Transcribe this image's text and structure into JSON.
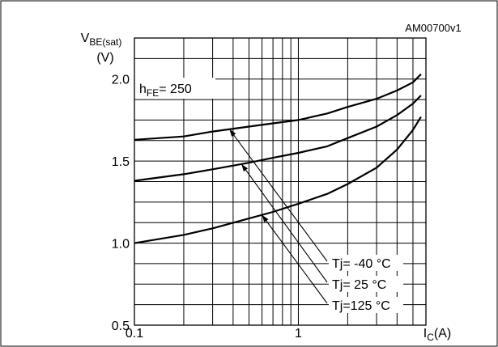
{
  "figure_id": "AM00700v1",
  "chart_data": {
    "type": "line",
    "x_scale": "log",
    "xlim": [
      0.1,
      6
    ],
    "ylim": [
      0.5,
      2.25
    ],
    "ylabel_main": "V",
    "ylabel_sub": "BE(sat)",
    "ylabel_unit": "(V)",
    "xlabel_main": "I",
    "xlabel_sub": "C",
    "xlabel_unit": "(A)",
    "x_tick_labels": [
      {
        "value": 0.1,
        "label": "0.1"
      },
      {
        "value": 1,
        "label": "1"
      }
    ],
    "y_tick_labels": [
      {
        "value": 0.5,
        "label": "0.5"
      },
      {
        "value": 1.0,
        "label": "1.0"
      },
      {
        "value": 1.5,
        "label": "1.5"
      },
      {
        "value": 2.0,
        "label": "2.0"
      }
    ],
    "condition": {
      "main": "h",
      "sub": "FE",
      "rest": "= 250"
    },
    "grid": true,
    "series": [
      {
        "name": "Tj= -40 °C",
        "x": [
          0.1,
          0.2,
          0.3,
          0.5,
          0.7,
          1.0,
          1.5,
          2.0,
          3.0,
          4.0,
          5.0,
          5.6
        ],
        "y": [
          1.63,
          1.65,
          1.68,
          1.71,
          1.73,
          1.75,
          1.79,
          1.83,
          1.88,
          1.93,
          1.98,
          2.03
        ],
        "arrow_at_x": 0.38
      },
      {
        "name": "Tj= 25 °C",
        "x": [
          0.1,
          0.2,
          0.3,
          0.5,
          0.7,
          1.0,
          1.5,
          2.0,
          3.0,
          4.0,
          5.0,
          5.6
        ],
        "y": [
          1.38,
          1.42,
          1.45,
          1.49,
          1.52,
          1.55,
          1.59,
          1.64,
          1.71,
          1.78,
          1.85,
          1.9
        ],
        "arrow_at_x": 0.45
      },
      {
        "name": "Tj=125 °C",
        "x": [
          0.1,
          0.2,
          0.3,
          0.5,
          0.7,
          1.0,
          1.5,
          2.0,
          3.0,
          4.0,
          5.0,
          5.6
        ],
        "y": [
          1.0,
          1.05,
          1.09,
          1.15,
          1.19,
          1.24,
          1.3,
          1.36,
          1.46,
          1.57,
          1.69,
          1.77
        ],
        "arrow_at_x": 0.6
      }
    ]
  }
}
